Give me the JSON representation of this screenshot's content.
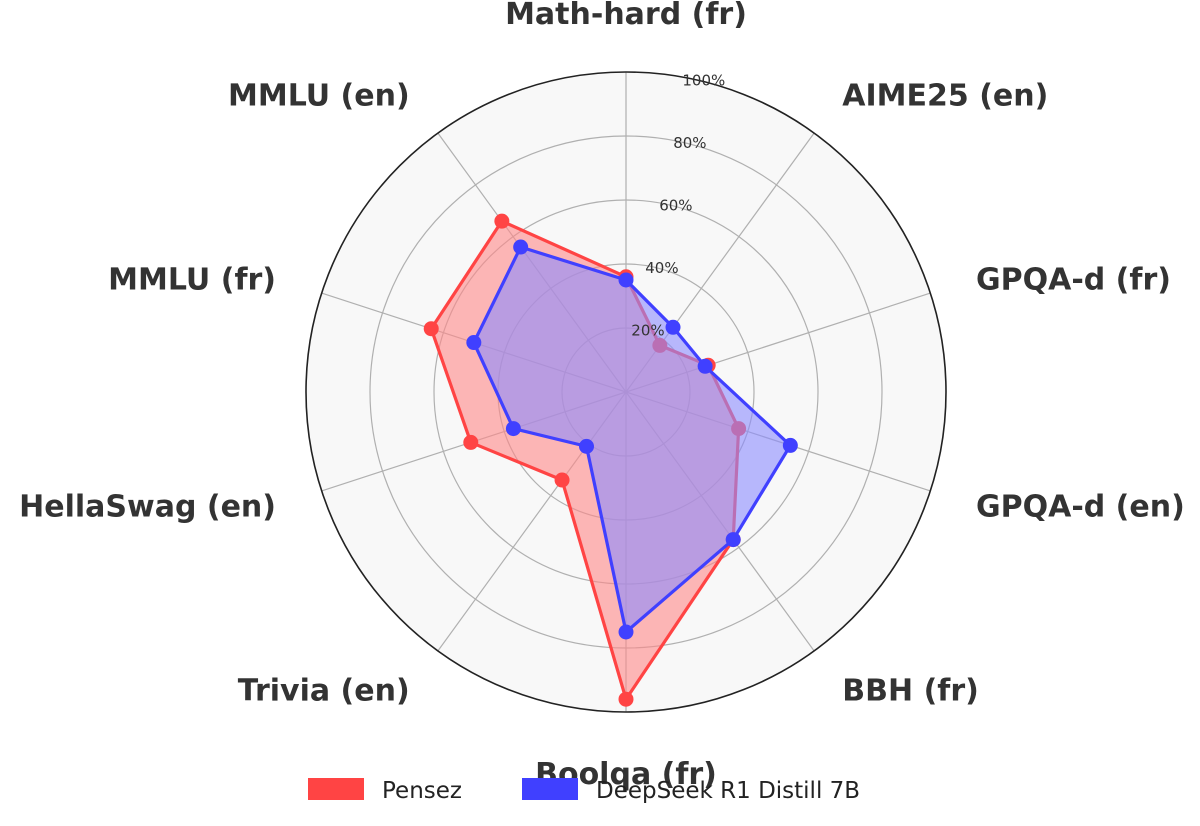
{
  "chart_data": {
    "type": "radar",
    "axes": [
      "Math-hard (fr)",
      "AIME25 (en)",
      "GPQA-d (fr)",
      "GPQA-d (en)",
      "BBH (fr)",
      "Boolqa (fr)",
      "Trivia (en)",
      "HellaSwag (en)",
      "MMLU (fr)",
      "MMLU (en)"
    ],
    "r_ticks": [
      20,
      40,
      60,
      80,
      100
    ],
    "r_tick_labels": [
      "20%",
      "40%",
      "60%",
      "80%",
      "100%"
    ],
    "rlim": [
      0,
      100
    ],
    "grid": true,
    "legend_position": "bottom-center",
    "series": [
      {
        "name": "Pensez",
        "color": "#ff4444",
        "fill": "#ff8888",
        "values": [
          36,
          18,
          27,
          37,
          57,
          96,
          34,
          51,
          64,
          66
        ]
      },
      {
        "name": "DeepSeek R1 Distill 7B",
        "color": "#4040ff",
        "fill": "#8c8cff",
        "values": [
          35,
          25,
          26,
          54,
          57,
          75,
          21,
          37,
          50,
          56
        ]
      }
    ]
  }
}
